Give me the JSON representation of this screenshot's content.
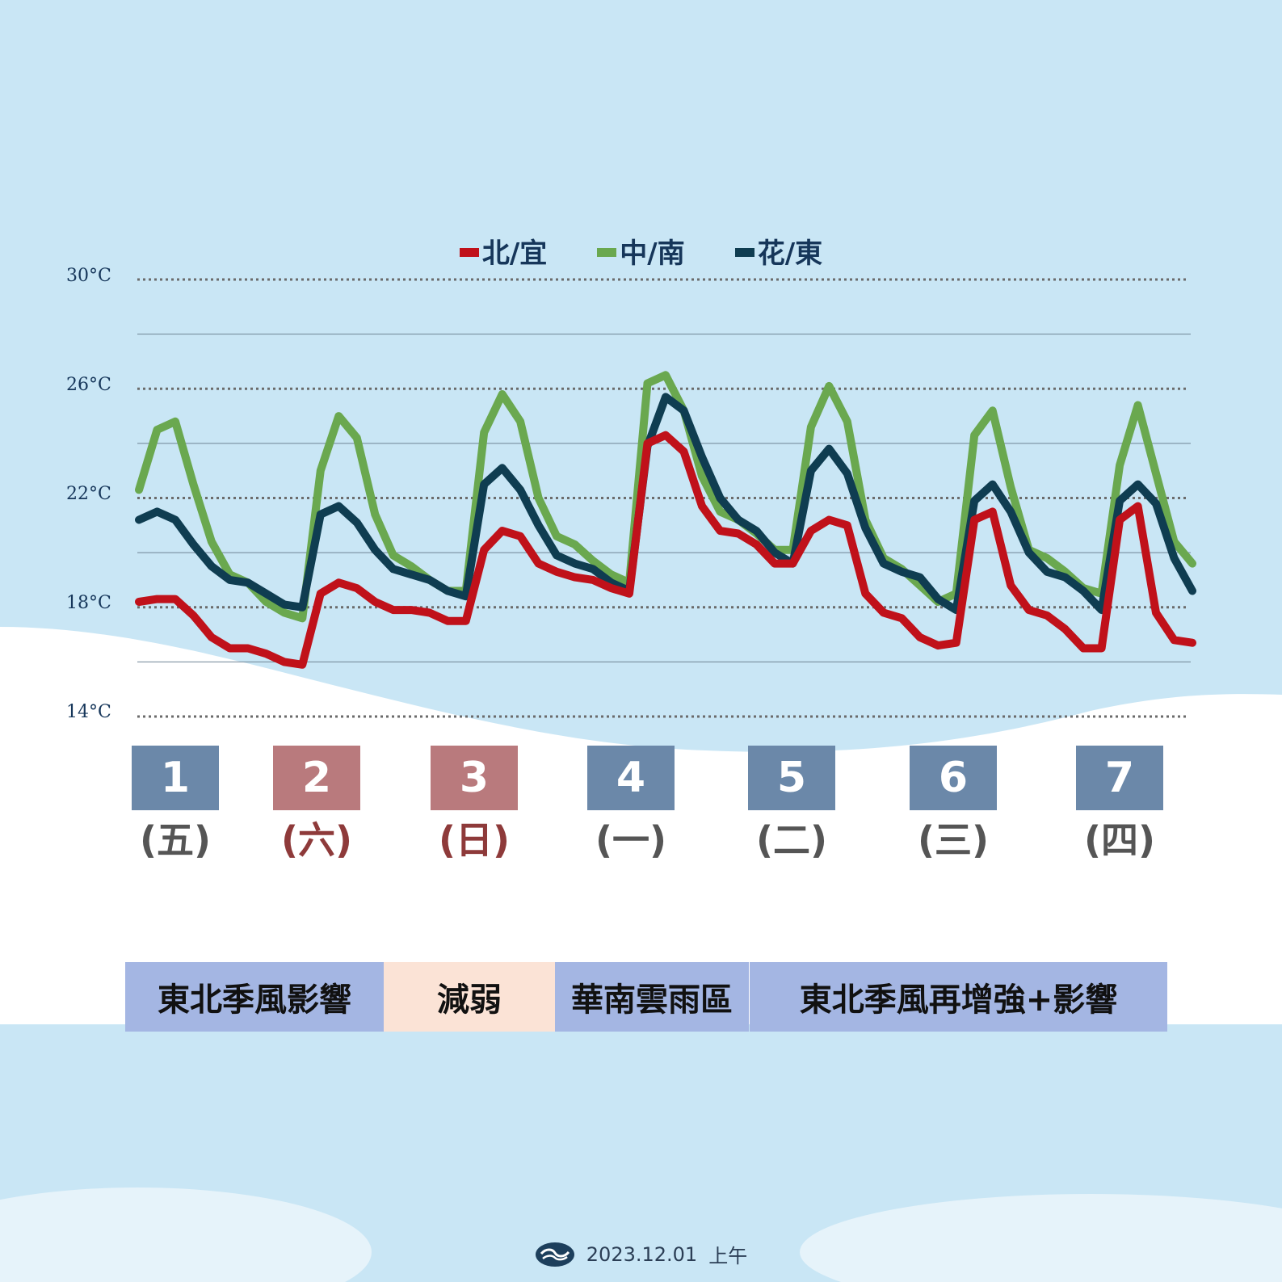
{
  "chart_data": {
    "type": "line",
    "y_unit": "°C",
    "ylim": [
      14,
      30
    ],
    "yticks": [
      "30°C",
      "26°C",
      "22°C",
      "18°C",
      "14°C"
    ],
    "ytick_values": [
      30,
      26,
      22,
      18,
      14
    ],
    "grid": true,
    "legend_position": "top",
    "samples_per_day": 8,
    "series": [
      {
        "name": "北/宜",
        "color": "#c0111a",
        "values": [
          18.2,
          18.3,
          18.3,
          17.7,
          16.9,
          16.5,
          16.5,
          16.3,
          16.0,
          15.9,
          18.5,
          18.9,
          18.7,
          18.2,
          17.9,
          17.9,
          17.8,
          17.5,
          17.5,
          20.1,
          20.8,
          20.6,
          19.6,
          19.3,
          19.1,
          19.0,
          18.7,
          18.5,
          24.0,
          24.3,
          23.7,
          21.7,
          20.8,
          20.7,
          20.3,
          19.6,
          19.6,
          20.8,
          21.2,
          21.0,
          18.5,
          17.8,
          17.6,
          16.9,
          16.6,
          16.7,
          21.2,
          21.5,
          18.8,
          17.9,
          17.7,
          17.2,
          16.5,
          16.5,
          21.2,
          21.7,
          17.8,
          16.8,
          16.7
        ]
      },
      {
        "name": "中/南",
        "color": "#6aa84f",
        "values": [
          22.3,
          24.5,
          24.8,
          22.5,
          20.4,
          19.2,
          18.9,
          18.2,
          17.8,
          17.6,
          23.0,
          25.0,
          24.2,
          21.4,
          19.9,
          19.5,
          19.0,
          18.6,
          18.6,
          24.4,
          25.8,
          24.8,
          22.0,
          20.6,
          20.3,
          19.7,
          19.2,
          18.9,
          26.2,
          26.5,
          25.2,
          22.8,
          21.5,
          21.2,
          20.7,
          20.1,
          20.1,
          24.6,
          26.1,
          24.8,
          21.2,
          19.8,
          19.4,
          18.8,
          18.2,
          18.5,
          24.3,
          25.2,
          22.4,
          20.1,
          19.8,
          19.3,
          18.7,
          18.5,
          23.2,
          25.4,
          22.9,
          20.4,
          19.6
        ]
      },
      {
        "name": "花/東",
        "color": "#0f3d51",
        "values": [
          21.2,
          21.5,
          21.2,
          20.3,
          19.5,
          19.0,
          18.9,
          18.5,
          18.1,
          18.0,
          21.4,
          21.7,
          21.1,
          20.1,
          19.4,
          19.2,
          19.0,
          18.6,
          18.4,
          22.5,
          23.1,
          22.3,
          21.0,
          19.9,
          19.6,
          19.4,
          18.9,
          18.6,
          23.9,
          25.7,
          25.2,
          23.5,
          22.0,
          21.2,
          20.8,
          20.0,
          19.6,
          23.0,
          23.8,
          22.9,
          20.9,
          19.6,
          19.3,
          19.1,
          18.3,
          17.9,
          21.9,
          22.5,
          21.5,
          20.0,
          19.3,
          19.1,
          18.6,
          17.9,
          21.9,
          22.5,
          21.8,
          19.8,
          18.6
        ]
      }
    ]
  },
  "days": [
    {
      "date": "1",
      "weekday": "(五)",
      "box_color": "#6b88a9",
      "text_color": "#555555"
    },
    {
      "date": "2",
      "weekday": "(六)",
      "box_color": "#b97a7d",
      "text_color": "#8e3a3a"
    },
    {
      "date": "3",
      "weekday": "(日)",
      "box_color": "#b97a7d",
      "text_color": "#8e3a3a"
    },
    {
      "date": "4",
      "weekday": "(一)",
      "box_color": "#6b88a9",
      "text_color": "#555555"
    },
    {
      "date": "5",
      "weekday": "(二)",
      "box_color": "#6b88a9",
      "text_color": "#555555"
    },
    {
      "date": "6",
      "weekday": "(三)",
      "box_color": "#6b88a9",
      "text_color": "#555555"
    },
    {
      "date": "7",
      "weekday": "(四)",
      "box_color": "#6b88a9",
      "text_color": "#555555"
    }
  ],
  "banners": [
    {
      "text": "東北季風影響",
      "color": "#a4b6e3"
    },
    {
      "text": "減弱",
      "color": "#fbe3d6"
    },
    {
      "text": "華南雲雨區",
      "color": "#a4b6e3"
    },
    {
      "text": "東北季風再增強+影響",
      "color": "#a4b6e3"
    }
  ],
  "footer": {
    "date": "2023.12.01",
    "period": "上午",
    "logo_icon": "cwa-logo-icon"
  },
  "colors": {
    "background": "#c9e6f5",
    "hill": "#ffffff",
    "text": "#16365a"
  }
}
